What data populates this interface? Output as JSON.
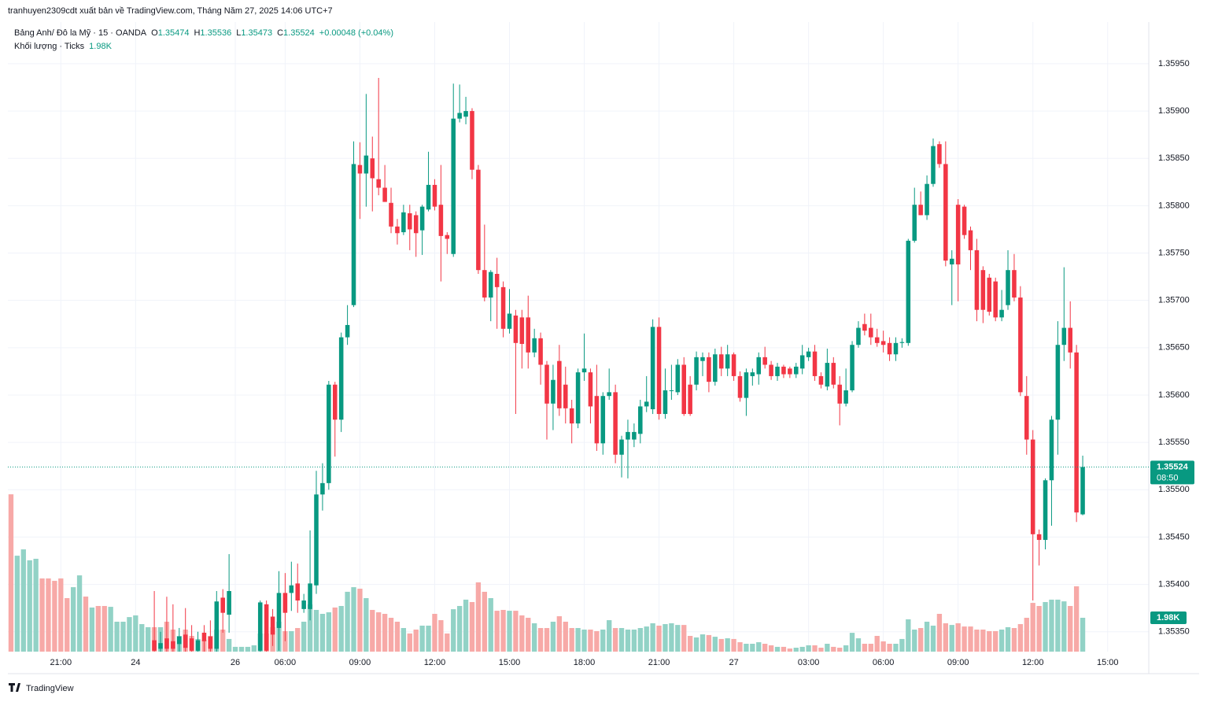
{
  "chart_data": {
    "type": "candlestick",
    "attribution": "tranhuyen2309cdt xuất bản về TradingView.com, Tháng Năm 27, 2025 14:06 UTC+7",
    "symbol": "Bảng Anh/ Đô la Mỹ · 15 · OANDA",
    "ohlc_labels": [
      "O",
      "H",
      "L",
      "C"
    ],
    "change": "+0.00048 (+0.04%)",
    "volume_title": "Khối lượng · Ticks",
    "volume_value_label": "1.98K",
    "countdown": "08:50",
    "footer": "TradingView",
    "up_color": "#089981",
    "down_color": "#f23645",
    "volume_up_color": "#92d2c6",
    "volume_down_color": "#f7a9a7",
    "grid": true,
    "ylim": [
      1.35329,
      1.35994
    ],
    "yticks": [
      {
        "value": 1.3535,
        "label": "1.35350"
      },
      {
        "value": 1.354,
        "label": "1.35400"
      },
      {
        "value": 1.3545,
        "label": "1.35450"
      },
      {
        "value": 1.355,
        "label": "1.35500"
      },
      {
        "value": 1.3555,
        "label": "1.35550"
      },
      {
        "value": 1.356,
        "label": "1.35600"
      },
      {
        "value": 1.3565,
        "label": "1.35650"
      },
      {
        "value": 1.357,
        "label": "1.35700"
      },
      {
        "value": 1.3575,
        "label": "1.35750"
      },
      {
        "value": 1.358,
        "label": "1.35800"
      },
      {
        "value": 1.3585,
        "label": "1.35850"
      },
      {
        "value": 1.359,
        "label": "1.35900"
      },
      {
        "value": 1.3595,
        "label": "1.35950"
      }
    ],
    "xlim": [
      -0.5,
      182.6
    ],
    "xticks": [
      {
        "value": 8,
        "label": "21:00"
      },
      {
        "value": 20,
        "label": "24"
      },
      {
        "value": 36,
        "label": "26"
      },
      {
        "value": 44,
        "label": "06:00"
      },
      {
        "value": 56,
        "label": "09:00"
      },
      {
        "value": 68,
        "label": "12:00"
      },
      {
        "value": 80,
        "label": "15:00"
      },
      {
        "value": 92,
        "label": "18:00"
      },
      {
        "value": 104,
        "label": "21:00"
      },
      {
        "value": 116,
        "label": "27"
      },
      {
        "value": 128,
        "label": "03:00"
      },
      {
        "value": 140,
        "label": "06:00"
      },
      {
        "value": 152,
        "label": "09:00"
      },
      {
        "value": 164,
        "label": "12:00"
      },
      {
        "value": 176,
        "label": "15:00"
      }
    ],
    "vlim": [
      0,
      11000
    ],
    "candles": [
      null,
      null,
      null,
      null,
      null,
      null,
      null,
      null,
      null,
      null,
      null,
      null,
      null,
      null,
      null,
      null,
      null,
      null,
      null,
      null,
      null,
      null,
      null,
      [
        1.35341,
        1.35393,
        1.35327,
        1.3533
      ],
      [
        1.35332,
        1.3535,
        1.35325,
        1.35338
      ],
      [
        1.35343,
        1.35387,
        1.35325,
        1.35332
      ],
      [
        1.3534,
        1.35379,
        1.3532,
        1.35332
      ],
      [
        1.35337,
        1.35354,
        1.3532,
        1.35345
      ],
      [
        1.35347,
        1.35375,
        1.3532,
        1.35333
      ],
      [
        1.35343,
        1.35357,
        1.3532,
        1.3533
      ],
      [
        1.3533,
        1.3535,
        1.3532,
        1.35341
      ],
      [
        1.35349,
        1.35357,
        1.3532,
        1.3534
      ],
      [
        1.35345,
        1.35362,
        1.3532,
        1.35332
      ],
      [
        1.35332,
        1.35393,
        1.3532,
        1.35382
      ],
      [
        1.35386,
        1.35395,
        1.35349,
        1.3537
      ],
      [
        1.35368,
        1.35432,
        1.35349,
        1.35393
      ],
      null,
      null,
      null,
      null,
      [
        1.3533,
        1.35383,
        1.3532,
        1.35381
      ],
      [
        1.35379,
        1.35383,
        1.3532,
        1.3533
      ],
      [
        1.35366,
        1.35374,
        1.35335,
        1.35347
      ],
      [
        1.35354,
        1.35414,
        1.3533,
        1.35391
      ],
      [
        1.35391,
        1.35412,
        1.3534,
        1.3537
      ],
      [
        1.35391,
        1.35424,
        1.35372,
        1.35399
      ],
      [
        1.35401,
        1.35422,
        1.3537,
        1.35383
      ],
      [
        1.35374,
        1.3539,
        1.3537,
        1.35383
      ],
      [
        1.35374,
        1.35457,
        1.35362,
        1.35401
      ],
      [
        1.35399,
        1.3552,
        1.3539,
        1.35495
      ],
      [
        1.35495,
        1.35528,
        1.35478,
        1.35507
      ],
      [
        1.35507,
        1.35615,
        1.355,
        1.35611
      ],
      [
        1.35611,
        1.35614,
        1.35535,
        1.35574
      ],
      [
        1.35574,
        1.35666,
        1.35561,
        1.35661
      ],
      [
        1.35661,
        1.35695,
        1.35653,
        1.35674
      ],
      [
        1.35695,
        1.35868,
        1.35693,
        1.35844
      ],
      [
        1.35843,
        1.35867,
        1.35786,
        1.35834
      ],
      [
        1.35834,
        1.35918,
        1.35799,
        1.35853
      ],
      [
        1.3585,
        1.35873,
        1.35794,
        1.35829
      ],
      [
        1.35828,
        1.35935,
        1.35811,
        1.35819
      ],
      [
        1.35819,
        1.35843,
        1.35804,
        1.35804
      ],
      [
        1.35803,
        1.35819,
        1.35771,
        1.35778
      ],
      [
        1.35778,
        1.35786,
        1.35759,
        1.35771
      ],
      [
        1.35772,
        1.35801,
        1.35769,
        1.35793
      ],
      [
        1.35792,
        1.35801,
        1.35753,
        1.35775
      ],
      [
        1.3579,
        1.35794,
        1.35746,
        1.35771
      ],
      [
        1.35774,
        1.35801,
        1.35748,
        1.35799
      ],
      [
        1.35796,
        1.35857,
        1.35794,
        1.35822
      ],
      [
        1.35822,
        1.35828,
        1.35795,
        1.35799
      ],
      [
        1.35801,
        1.35843,
        1.3572,
        1.35768
      ],
      [
        1.35769,
        1.35772,
        1.35749,
        1.35765
      ],
      [
        1.35749,
        1.35929,
        1.35746,
        1.35892
      ],
      [
        1.35892,
        1.35928,
        1.35888,
        1.35898
      ],
      [
        1.35894,
        1.35915,
        1.35886,
        1.359
      ],
      [
        1.359,
        1.35903,
        1.35828,
        1.35838
      ],
      [
        1.35838,
        1.35843,
        1.35728,
        1.35732
      ],
      [
        1.35732,
        1.3578,
        1.35699,
        1.35703
      ],
      [
        1.35703,
        1.35732,
        1.35678,
        1.3573
      ],
      [
        1.35728,
        1.35745,
        1.3567,
        1.35714
      ],
      [
        1.35714,
        1.3572,
        1.35661,
        1.3567
      ],
      [
        1.3567,
        1.35712,
        1.35665,
        1.35686
      ],
      [
        1.35684,
        1.3569,
        1.3558,
        1.35655
      ],
      [
        1.35682,
        1.3569,
        1.35628,
        1.35654
      ],
      [
        1.35682,
        1.35705,
        1.35628,
        1.35645
      ],
      [
        1.35645,
        1.3567,
        1.3564,
        1.3566
      ],
      [
        1.3566,
        1.35666,
        1.35611,
        1.35632
      ],
      [
        1.35632,
        1.35636,
        1.35553,
        1.35591
      ],
      [
        1.35591,
        1.35632,
        1.35563,
        1.35616
      ],
      [
        1.35636,
        1.35653,
        1.35578,
        1.35586
      ],
      [
        1.35611,
        1.3563,
        1.3557,
        1.35586
      ],
      [
        1.35586,
        1.35595,
        1.35549,
        1.3557
      ],
      [
        1.3557,
        1.35628,
        1.35565,
        1.35624
      ],
      [
        1.35624,
        1.35665,
        1.35615,
        1.35628
      ],
      [
        1.35624,
        1.35628,
        1.3557,
        1.35588
      ],
      [
        1.35599,
        1.35632,
        1.35541,
        1.35549
      ],
      [
        1.35549,
        1.35603,
        1.35537,
        1.35599
      ],
      [
        1.35599,
        1.35628,
        1.35595,
        1.35603
      ],
      [
        1.35603,
        1.35611,
        1.35528,
        1.35537
      ],
      [
        1.35537,
        1.35557,
        1.35513,
        1.35553
      ],
      [
        1.35553,
        1.35574,
        1.35512,
        1.35561
      ],
      [
        1.35553,
        1.3557,
        1.35545,
        1.35561
      ],
      [
        1.35559,
        1.35595,
        1.35549,
        1.35588
      ],
      [
        1.35588,
        1.3562,
        1.35582,
        1.35593
      ],
      [
        1.35585,
        1.3568,
        1.3558,
        1.35672
      ],
      [
        1.35672,
        1.35682,
        1.35574,
        1.3558
      ],
      [
        1.3558,
        1.35628,
        1.35575,
        1.35605
      ],
      [
        1.35605,
        1.35632,
        1.35595,
        1.35605
      ],
      [
        1.35603,
        1.35638,
        1.356,
        1.35632
      ],
      [
        1.35632,
        1.3564,
        1.35578,
        1.3558
      ],
      [
        1.35611,
        1.3562,
        1.35578,
        1.3558
      ],
      [
        1.35611,
        1.35646,
        1.35605,
        1.3564
      ],
      [
        1.35636,
        1.35645,
        1.3562,
        1.3564
      ],
      [
        1.3564,
        1.35645,
        1.35603,
        1.35614
      ],
      [
        1.35614,
        1.35649,
        1.3561,
        1.35643
      ],
      [
        1.35643,
        1.35651,
        1.3562,
        1.35628
      ],
      [
        1.35628,
        1.35653,
        1.3562,
        1.35643
      ],
      [
        1.35643,
        1.35645,
        1.35615,
        1.3562
      ],
      [
        1.3562,
        1.35625,
        1.35593,
        1.35597
      ],
      [
        1.35597,
        1.35628,
        1.35578,
        1.35624
      ],
      [
        1.3562,
        1.35628,
        1.3561,
        1.35624
      ],
      [
        1.35622,
        1.35645,
        1.35611,
        1.3564
      ],
      [
        1.3564,
        1.35651,
        1.35628,
        1.35632
      ],
      [
        1.35632,
        1.35636,
        1.35616,
        1.3562
      ],
      [
        1.3562,
        1.35634,
        1.35615,
        1.3563
      ],
      [
        1.3563,
        1.35632,
        1.35618,
        1.35622
      ],
      [
        1.35628,
        1.3563,
        1.35618,
        1.35622
      ],
      [
        1.35622,
        1.35634,
        1.35618,
        1.3563
      ],
      [
        1.35628,
        1.35653,
        1.35622,
        1.35642
      ],
      [
        1.3564,
        1.3565,
        1.35636,
        1.35646
      ],
      [
        1.35646,
        1.35653,
        1.35615,
        1.3562
      ],
      [
        1.3562,
        1.35624,
        1.35607,
        1.35611
      ],
      [
        1.35609,
        1.35649,
        1.35605,
        1.35634
      ],
      [
        1.35634,
        1.3564,
        1.35607,
        1.35611
      ],
      [
        1.35611,
        1.3562,
        1.35568,
        1.35591
      ],
      [
        1.35591,
        1.35628,
        1.35588,
        1.35605
      ],
      [
        1.35605,
        1.35657,
        1.35603,
        1.35653
      ],
      [
        1.35653,
        1.35678,
        1.3565,
        1.35671
      ],
      [
        1.35675,
        1.35686,
        1.35663,
        1.35668
      ],
      [
        1.35671,
        1.35686,
        1.35653,
        1.35661
      ],
      [
        1.35661,
        1.3567,
        1.35651,
        1.35655
      ],
      [
        1.35657,
        1.35668,
        1.35645,
        1.35653
      ],
      [
        1.35655,
        1.35661,
        1.35636,
        1.35643
      ],
      [
        1.35643,
        1.35661,
        1.35636,
        1.35655
      ],
      [
        1.35655,
        1.3566,
        1.3565,
        1.35656
      ],
      [
        1.35655,
        1.35765,
        1.35652,
        1.35763
      ],
      [
        1.35763,
        1.35819,
        1.35761,
        1.35801
      ],
      [
        1.35801,
        1.35815,
        1.3579,
        1.3579
      ],
      [
        1.3579,
        1.35832,
        1.35785,
        1.35823
      ],
      [
        1.35823,
        1.35871,
        1.3582,
        1.35863
      ],
      [
        1.35865,
        1.35868,
        1.3584,
        1.35844
      ],
      [
        1.35844,
        1.35868,
        1.35736,
        1.35742
      ],
      [
        1.35738,
        1.35753,
        1.35695,
        1.35744
      ],
      [
        1.35801,
        1.35807,
        1.35699,
        1.35738
      ],
      [
        1.35799,
        1.35801,
        1.35765,
        1.35769
      ],
      [
        1.35774,
        1.35778,
        1.35732,
        1.35753
      ],
      [
        1.35753,
        1.35765,
        1.35678,
        1.3569
      ],
      [
        1.35732,
        1.35736,
        1.35676,
        1.3569
      ],
      [
        1.35724,
        1.35728,
        1.35684,
        1.35688
      ],
      [
        1.3572,
        1.35724,
        1.35678,
        1.35682
      ],
      [
        1.35682,
        1.35711,
        1.35678,
        1.3569
      ],
      [
        1.35695,
        1.35753,
        1.3569,
        1.35732
      ],
      [
        1.35732,
        1.35749,
        1.35699,
        1.35703
      ],
      [
        1.35703,
        1.35715,
        1.35599,
        1.35603
      ],
      [
        1.35599,
        1.3562,
        1.35537,
        1.35553
      ],
      [
        1.35553,
        1.35563,
        1.35383,
        1.35453
      ],
      [
        1.35453,
        1.35458,
        1.3542,
        1.35447
      ],
      [
        1.35447,
        1.35512,
        1.35437,
        1.3551
      ],
      [
        1.3551,
        1.35578,
        1.35462,
        1.35574
      ],
      [
        1.35574,
        1.35678,
        1.35537,
        1.35653
      ],
      [
        1.35653,
        1.35735,
        1.35636,
        1.35671
      ],
      [
        1.35671,
        1.35699,
        1.35628,
        1.35645
      ],
      [
        1.35645,
        1.35653,
        1.35466,
        1.35476
      ],
      [
        1.35474,
        1.35536,
        1.35473,
        1.35524
      ]
    ],
    "volumes": [
      9200,
      5610,
      5980,
      5340,
      5430,
      4280,
      4280,
      4140,
      4280,
      3130,
      3770,
      4460,
      3220,
      2580,
      2670,
      2670,
      2620,
      1750,
      1750,
      2020,
      2120,
      1610,
      1430,
      1430,
      1430,
      1750,
      1290,
      920,
      1290,
      920,
      740,
      690,
      920,
      1290,
      1290,
      740,
      280,
      280,
      280,
      370,
      1060,
      1060,
      1430,
      1750,
      1200,
      1200,
      1380,
      1750,
      2760,
      2440,
      2210,
      2300,
      2580,
      2670,
      3500,
      3770,
      3680,
      3130,
      2440,
      2300,
      2210,
      1980,
      1750,
      1380,
      1060,
      1290,
      1520,
      1520,
      2210,
      1840,
      1060,
      2480,
      2670,
      3040,
      2900,
      4050,
      3500,
      3130,
      2390,
      2440,
      2390,
      2390,
      2120,
      1980,
      1660,
      1380,
      1380,
      1750,
      2070,
      1750,
      1380,
      1380,
      1290,
      1290,
      1200,
      1290,
      1840,
      1380,
      1380,
      1290,
      1290,
      1380,
      1470,
      1660,
      1520,
      1610,
      1660,
      1560,
      1560,
      920,
      830,
      1010,
      970,
      870,
      740,
      780,
      740,
      550,
      460,
      460,
      550,
      460,
      370,
      280,
      280,
      180,
      230,
      280,
      370,
      370,
      230,
      460,
      280,
      230,
      370,
      1100,
      780,
      460,
      460,
      920,
      600,
      460,
      460,
      740,
      1890,
      1290,
      1380,
      1750,
      1520,
      2210,
      1660,
      1560,
      1660,
      1470,
      1470,
      1290,
      1290,
      1200,
      1200,
      1290,
      1430,
      1380,
      1610,
      1980,
      2850,
      2670,
      2900,
      3040,
      3040,
      2940,
      2670,
      3820,
      1980
    ],
    "volume_up": [
      false,
      true,
      true,
      true,
      true,
      false,
      false,
      false,
      false,
      false,
      true,
      true,
      false,
      true,
      false,
      false,
      true,
      true,
      true,
      true,
      true,
      true,
      true,
      false,
      true,
      false,
      false,
      true,
      false,
      false,
      true,
      false,
      false,
      true,
      false,
      true,
      true,
      true,
      true,
      true,
      true,
      false,
      false,
      true,
      false,
      true,
      false,
      true,
      true,
      true,
      true,
      true,
      false,
      true,
      true,
      true,
      false,
      true,
      false,
      false,
      false,
      false,
      false,
      true,
      false,
      false,
      true,
      true,
      false,
      false,
      false,
      true,
      true,
      true,
      false,
      false,
      false,
      true,
      false,
      false,
      true,
      false,
      false,
      false,
      true,
      false,
      false,
      true,
      false,
      false,
      false,
      true,
      true,
      false,
      false,
      true,
      true,
      false,
      true,
      true,
      true,
      true,
      true,
      true,
      false,
      true,
      true,
      true,
      false,
      false,
      true,
      true,
      false,
      true,
      false,
      true,
      false,
      false,
      true,
      true,
      true,
      false,
      false,
      true,
      false,
      false,
      true,
      true,
      true,
      false,
      false,
      true,
      false,
      false,
      true,
      true,
      true,
      false,
      false,
      false,
      false,
      false,
      true,
      true,
      true,
      true,
      false,
      true,
      true,
      false,
      false,
      true,
      false,
      false,
      false,
      false,
      false,
      false,
      false,
      true,
      true,
      false,
      false,
      false,
      false,
      false,
      true,
      true,
      true,
      true,
      false,
      false,
      true
    ]
  }
}
